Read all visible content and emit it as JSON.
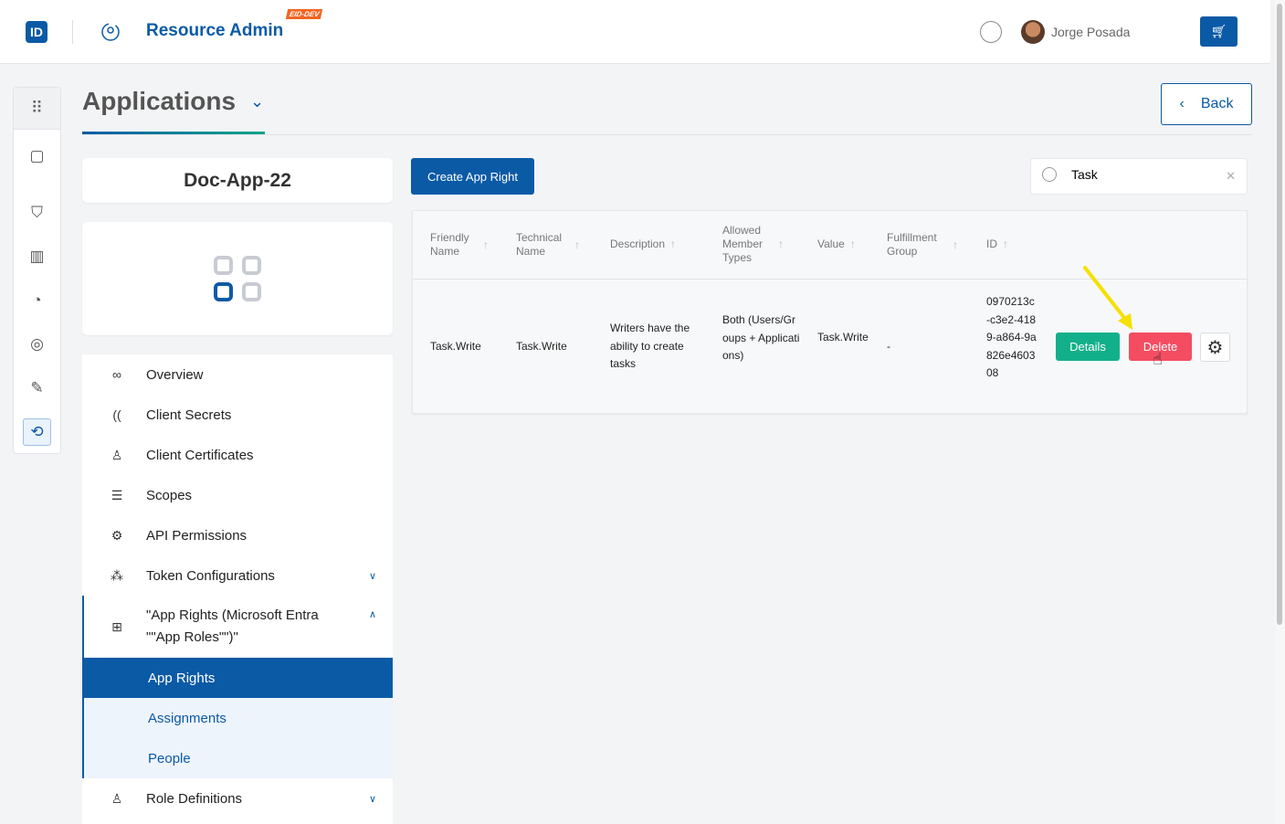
{
  "header": {
    "logo": "ID",
    "app_title": "Resource Admin",
    "env_badge": "EID-DEV",
    "user_name": "Jorge Posada"
  },
  "page": {
    "title": "Applications",
    "back_label": "Back"
  },
  "app": {
    "name": "Doc-App-22"
  },
  "menu": {
    "items": [
      {
        "label": "Overview",
        "icon": "glasses-icon"
      },
      {
        "label": "Client Secrets",
        "icon": "fingerprint-icon"
      },
      {
        "label": "Client Certificates",
        "icon": "certificate-icon"
      },
      {
        "label": "Scopes",
        "icon": "list-icon"
      },
      {
        "label": "API Permissions",
        "icon": "gear-icon"
      },
      {
        "label": "Token Configurations",
        "icon": "network-icon"
      },
      {
        "label": "\"App Rights (Microsoft Entra \"\"App Roles\"\")\"",
        "icon": "apps-add-icon"
      },
      {
        "label": "App Rights"
      },
      {
        "label": "Assignments"
      },
      {
        "label": "People"
      },
      {
        "label": "Role Definitions",
        "icon": "user-icon"
      }
    ]
  },
  "toolbar": {
    "create_label": "Create App Right",
    "search_value": "Task"
  },
  "table": {
    "columns": [
      "Friendly Name",
      "Technical Name",
      "Description",
      "Allowed Member Types",
      "Value",
      "Fulfillment Group",
      "ID"
    ],
    "rows": [
      {
        "friendly_name": "Task.Write",
        "technical_name": "Task.Write",
        "description": "Writers have the ability to create tasks",
        "allowed_member_types": "Both (Users/Groups + Applications)",
        "value": "Task.Write",
        "fulfillment_group": "-",
        "id": "0970213c-c3e2-4189-a864-9a826e460308",
        "details_label": "Details",
        "delete_label": "Delete"
      }
    ]
  },
  "colors": {
    "primary": "#0b5aa6",
    "details": "#12b08a",
    "delete": "#f44d61",
    "annotation_arrow": "#f5e000"
  }
}
